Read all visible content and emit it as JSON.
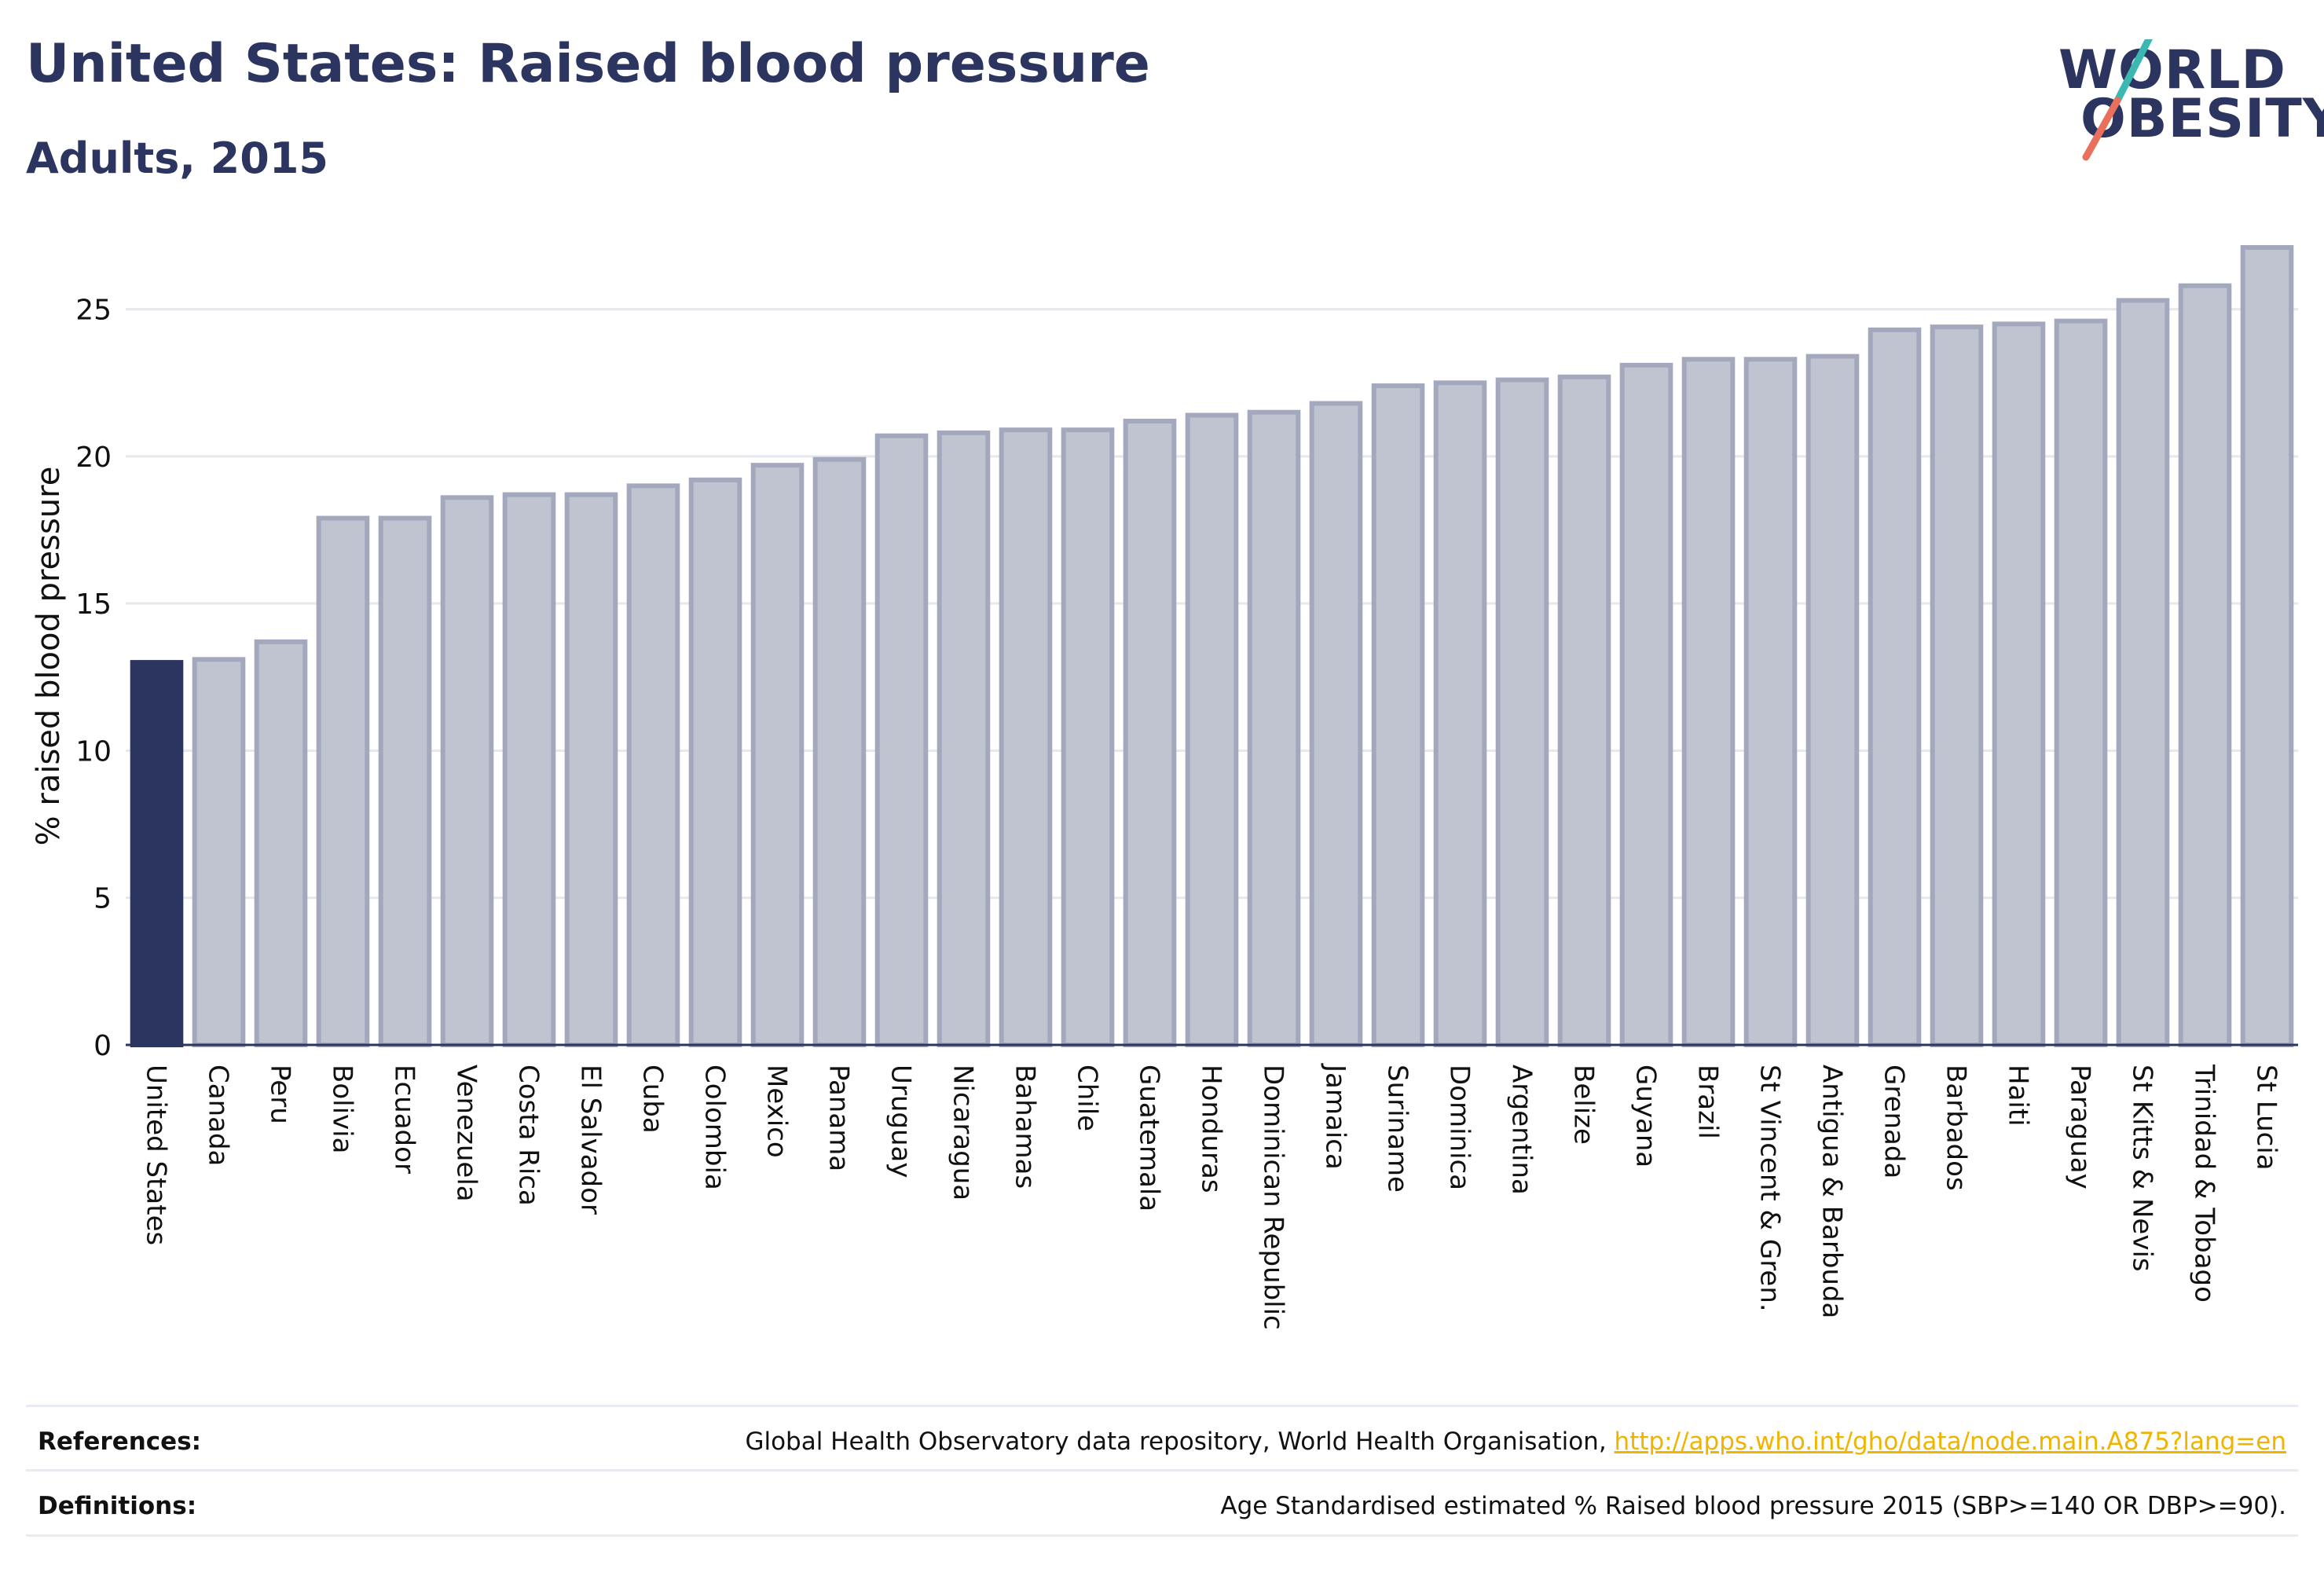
{
  "header": {
    "title": "United States: Raised blood pressure",
    "subtitle": "Adults, 2015"
  },
  "logo": {
    "line1": "WORLD",
    "line2": "OBESITY"
  },
  "colors": {
    "highlight": "#2b3560",
    "bar": "#c0c4d1",
    "bar_edge": "#a3a8bd",
    "text": "#111111",
    "grid": "#e6e8ee",
    "accent_teal": "#3cb8b2",
    "accent_red": "#e8705d"
  },
  "chart_data": {
    "type": "bar",
    "title": "",
    "xlabel": "",
    "ylabel": "% raised blood pressure",
    "ylim": [
      0,
      27.5
    ],
    "yticks": [
      0,
      5,
      10,
      15,
      20,
      25
    ],
    "highlight": "United States",
    "categories": [
      "United States",
      "Canada",
      "Peru",
      "Bolivia",
      "Ecuador",
      "Venezuela",
      "Costa Rica",
      "El Salvador",
      "Cuba",
      "Colombia",
      "Mexico",
      "Panama",
      "Uruguay",
      "Nicaragua",
      "Bahamas",
      "Chile",
      "Guatemala",
      "Honduras",
      "Dominican Republic",
      "Jamaica",
      "Suriname",
      "Dominica",
      "Argentina",
      "Belize",
      "Guyana",
      "Brazil",
      "St Vincent & Gren.",
      "Antigua & Barbuda",
      "Grenada",
      "Barbados",
      "Haiti",
      "Paraguay",
      "St Kitts & Nevis",
      "Trinidad & Tobago",
      "St Lucia"
    ],
    "values": [
      13.0,
      13.1,
      13.7,
      17.9,
      17.9,
      18.6,
      18.7,
      18.7,
      19.0,
      19.2,
      19.7,
      19.9,
      20.7,
      20.8,
      20.9,
      20.9,
      21.2,
      21.4,
      21.5,
      21.8,
      22.4,
      22.5,
      22.6,
      22.7,
      23.1,
      23.3,
      23.3,
      23.4,
      24.3,
      24.4,
      24.5,
      24.6,
      25.3,
      25.8,
      27.1
    ]
  },
  "footer": {
    "references_label": "References:",
    "references_text": "Global Health Observatory data repository, World Health Organisation, ",
    "references_link": "http://apps.who.int/gho/data/node.main.A875?lang=en",
    "definitions_label": "Definitions:",
    "definitions_text": "Age Standardised estimated % Raised blood pressure 2015 (SBP>=140 OR DBP>=90)."
  }
}
